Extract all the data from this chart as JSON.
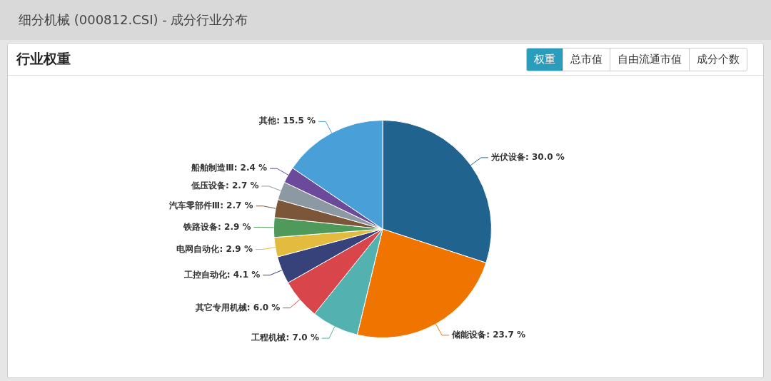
{
  "chart_data": {
    "type": "pie",
    "title": "细分机械 (000812.CSI) - 成分行业分布",
    "subtitle": "行业权重",
    "annotations": [
      "权重",
      "总市值",
      "自由流通市值",
      "成分个数"
    ],
    "categories": [
      "光伏设备",
      "储能设备",
      "工程机械",
      "其它专用机械",
      "工控自动化",
      "电网自动化",
      "铁路设备",
      "汽车零部件Ⅲ",
      "低压设备",
      "船舶制造Ⅲ",
      "其他"
    ],
    "values": [
      30.0,
      23.7,
      7.0,
      6.0,
      4.1,
      2.9,
      2.9,
      2.7,
      2.7,
      2.4,
      15.5
    ],
    "colors": [
      "#21638f",
      "#ef7400",
      "#53b1af",
      "#d8464b",
      "#364279",
      "#e3bb3f",
      "#4f9a5b",
      "#7c5638",
      "#8c98a2",
      "#6b4a9b",
      "#499fd7"
    ],
    "value_labels": [
      ": 30.0 %",
      ": 23.7 %",
      ": 7.0 %",
      ": 6.0 %",
      ": 4.1 %",
      ": 2.9 %",
      ": 2.9 %",
      ": 2.7 %",
      ": 2.7 %",
      ": 2.4 %",
      ": 15.5 %"
    ],
    "legend": false
  }
}
